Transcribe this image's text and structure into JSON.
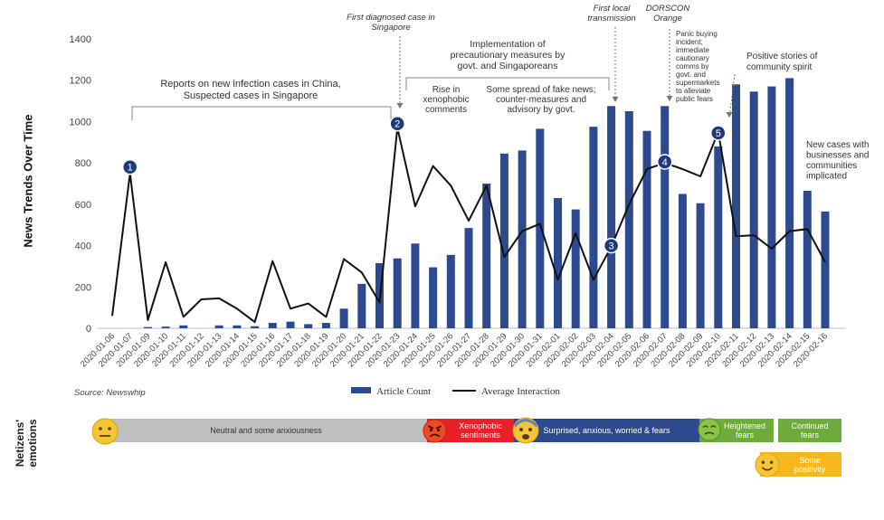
{
  "chart_data": {
    "type": "bar",
    "ylabel": "News Trends Over Time",
    "ylim": [
      0,
      1400
    ],
    "yticks": [
      0,
      200,
      400,
      600,
      800,
      1000,
      1200,
      1400
    ],
    "categories": [
      "2020-01-06",
      "2020-01-07",
      "2020-01-09",
      "2020-01-10",
      "2020-01-11",
      "2020-01-12",
      "2020-01-13",
      "2020-01-14",
      "2020-01-15",
      "2020-01-16",
      "2020-01-17",
      "2020-01-18",
      "2020-01-19",
      "2020-01-20",
      "2020-01-21",
      "2020-01-22",
      "2020-01-23",
      "2020-01-24",
      "2020-01-25",
      "2020-01-26",
      "2020-01-27",
      "2020-01-28",
      "2020-01-29",
      "2020-01-30",
      "2020-01-31",
      "2020-02-01",
      "2020-02-02",
      "2020-02-03",
      "2020-02-04",
      "2020-02-05",
      "2020-02-06",
      "2020-02-07",
      "2020-02-08",
      "2020-02-09",
      "2020-02-10",
      "2020-02-11",
      "2020-02-12",
      "2020-02-13",
      "2020-02-14",
      "2020-02-15",
      "2020-02-16"
    ],
    "series": [
      {
        "name": "Article Count",
        "kind": "bar",
        "color": "#2e4a8f",
        "values": [
          0,
          0,
          6,
          8,
          14,
          0,
          14,
          14,
          10,
          26,
          32,
          20,
          26,
          95,
          215,
          315,
          338,
          410,
          295,
          355,
          485,
          700,
          845,
          860,
          965,
          630,
          575,
          975,
          1075,
          1050,
          955,
          1075,
          650,
          605,
          880,
          1180,
          1145,
          1170,
          1210,
          665,
          565
        ]
      },
      {
        "name": "Average Interaction",
        "kind": "line",
        "color": "#111111",
        "values": [
          60,
          750,
          40,
          320,
          55,
          140,
          145,
          95,
          30,
          325,
          95,
          120,
          55,
          335,
          270,
          125,
          970,
          590,
          785,
          690,
          520,
          690,
          345,
          470,
          505,
          235,
          460,
          235,
          395,
          600,
          770,
          800,
          770,
          735,
          950,
          445,
          450,
          385,
          470,
          480,
          320
        ]
      }
    ],
    "events": [
      {
        "num": "1",
        "index": 1,
        "value": 780
      },
      {
        "num": "2",
        "index": 16,
        "value": 990
      },
      {
        "num": "3",
        "index": 28,
        "value": 400
      },
      {
        "num": "4",
        "index": 31,
        "value": 805
      },
      {
        "num": "5",
        "index": 34,
        "value": 945
      }
    ],
    "annotations": {
      "reports": [
        "Reports on new infection cases in China,",
        "Suspected cases in Singapore"
      ],
      "first_diagnosed": [
        "First diagnosed case in",
        "Singapore"
      ],
      "precautionary": [
        "Implementation of",
        "precautionary measures by",
        "govt. and Singaporeans"
      ],
      "xenophobic": [
        "Rise in",
        "xenophobic",
        "comments"
      ],
      "fake_news": [
        "Some spread of fake news;",
        "counter-measures and",
        "advisory by govt."
      ],
      "first_local": [
        "First local",
        "transmission"
      ],
      "dorscon": [
        "DORSCON",
        "Orange"
      ],
      "panic": [
        "Panic buying",
        "incident;",
        "immediate",
        "cautionary",
        "comms by",
        "govt. and",
        "supermarkets",
        "to alleviate",
        "public fears"
      ],
      "positive": [
        "Positive stories of",
        "community spirit"
      ],
      "new_cases": [
        "New cases with",
        "businesses and",
        "communities",
        "implicated"
      ]
    },
    "source": "Source: Newswhip"
  },
  "emotions": {
    "label": [
      "Netizens'",
      "emotions"
    ],
    "bars": [
      {
        "name": "neutral",
        "text": "Neutral and some anxiousness",
        "color": "#bfbfbf"
      },
      {
        "name": "xenophobic",
        "text": "Xenophobic sentiments",
        "color": "#e8202a"
      },
      {
        "name": "surprised",
        "text": "Surprised, anxious, worried & fears",
        "color": "#2e4a8f"
      },
      {
        "name": "heightened",
        "text": "Heightened fears",
        "color": "#6cab3c"
      },
      {
        "name": "continued",
        "text": "Continued fears",
        "color": "#6cab3c"
      },
      {
        "name": "positivity",
        "text": "Some positivity",
        "color": "#f6b81c"
      }
    ]
  }
}
